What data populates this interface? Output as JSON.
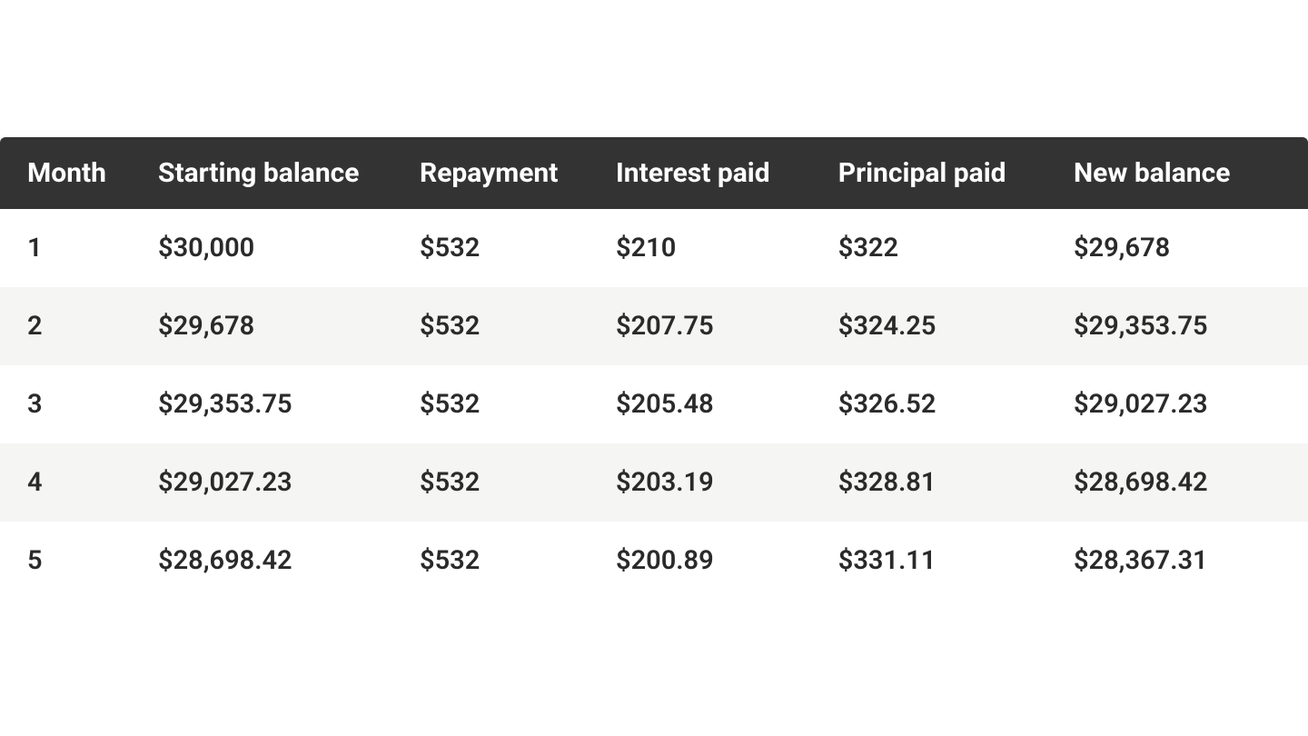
{
  "table": {
    "type": "table",
    "header_bg_color": "#333333",
    "header_text_color": "#ffffff",
    "row_bg_color": "#ffffff",
    "row_alt_bg_color": "#f5f5f4",
    "cell_text_color": "#2a2a2a",
    "header_font_size": 30,
    "header_font_weight": 700,
    "cell_font_size": 29,
    "cell_font_weight": 600,
    "columns": [
      {
        "label": "Month",
        "width_pct": 10
      },
      {
        "label": "Starting balance",
        "width_pct": 20
      },
      {
        "label": "Repayment",
        "width_pct": 15
      },
      {
        "label": "Interest paid",
        "width_pct": 17
      },
      {
        "label": "Principal paid",
        "width_pct": 18
      },
      {
        "label": "New balance",
        "width_pct": 20
      }
    ],
    "rows": [
      {
        "month": "1",
        "starting_balance": "$30,000",
        "repayment": "$532",
        "interest_paid": " $210",
        "principal_paid": "$322",
        "new_balance": "$29,678"
      },
      {
        "month": "2",
        "starting_balance": "$29,678",
        "repayment": "$532",
        "interest_paid": "$207.75",
        "principal_paid": "$324.25",
        "new_balance": "$29,353.75"
      },
      {
        "month": "3",
        "starting_balance": "$29,353.75",
        "repayment": "$532",
        "interest_paid": "$205.48",
        "principal_paid": "$326.52",
        "new_balance": "$29,027.23"
      },
      {
        "month": "4",
        "starting_balance": "$29,027.23",
        "repayment": "$532",
        "interest_paid": "$203.19",
        "principal_paid": "$328.81",
        "new_balance": "$28,698.42"
      },
      {
        "month": "5",
        "starting_balance": "$28,698.42",
        "repayment": "$532",
        "interest_paid": "$200.89",
        "principal_paid": "$331.11",
        "new_balance": "$28,367.31"
      }
    ]
  }
}
